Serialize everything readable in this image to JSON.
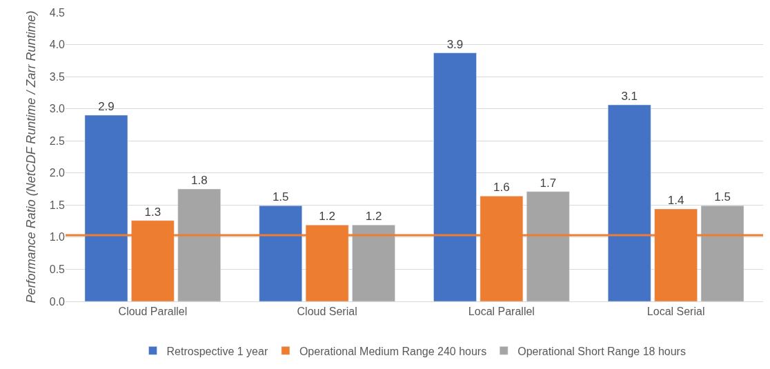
{
  "chart_data": {
    "type": "bar",
    "ylabel": "Performance Ratio (NetCDF Runtime / Zarr Runtime)",
    "categories": [
      "Cloud Parallel",
      "Cloud Serial",
      "Local Parallel",
      "Local Serial"
    ],
    "series": [
      {
        "name": "Retrospective 1 year",
        "color": "#4472c4",
        "values": [
          2.9,
          1.49,
          3.87,
          3.06
        ],
        "value_labels": [
          "2.9",
          "1.5",
          "3.9",
          "3.1"
        ]
      },
      {
        "name": "Operational Medium Range 240 hours",
        "color": "#ed7d31",
        "values": [
          1.26,
          1.19,
          1.64,
          1.44
        ],
        "value_labels": [
          "1.3",
          "1.2",
          "1.6",
          "1.4"
        ]
      },
      {
        "name": "Operational Short Range 18 hours",
        "color": "#a5a5a5",
        "values": [
          1.75,
          1.19,
          1.71,
          1.49
        ],
        "value_labels": [
          "1.8",
          "1.2",
          "1.7",
          "1.5"
        ]
      }
    ],
    "ylim": [
      0,
      4.5
    ],
    "yticks": [
      {
        "value": 0,
        "label": "0.0"
      },
      {
        "value": 0.5,
        "label": "0.5"
      },
      {
        "value": 1,
        "label": "1.0"
      },
      {
        "value": 1.5,
        "label": "1.5"
      },
      {
        "value": 2,
        "label": "2.0"
      },
      {
        "value": 2.5,
        "label": "2.5"
      },
      {
        "value": 3,
        "label": "3.0"
      },
      {
        "value": 3.5,
        "label": "3.5"
      },
      {
        "value": 4,
        "label": "4.0"
      },
      {
        "value": 4.5,
        "label": "4.5"
      }
    ],
    "ref_lines": [
      {
        "axis": "y",
        "value": 1.03,
        "color": "#ed7d31"
      }
    ],
    "grid": "y",
    "legend": "bottom"
  }
}
